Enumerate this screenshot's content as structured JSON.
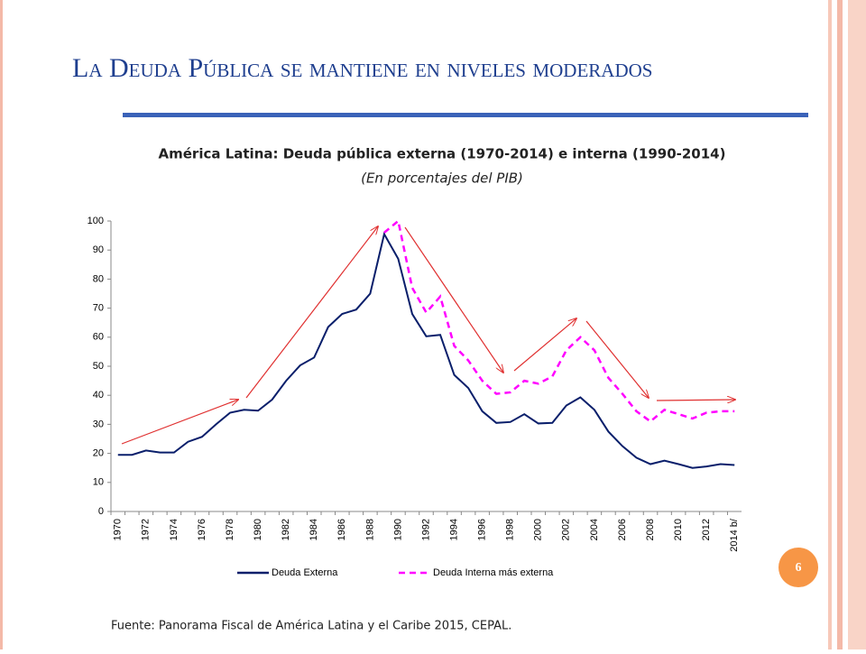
{
  "slide_title": "La Deuda Pública se mantiene en niveles moderados",
  "source": "Fuente: Panorama Fiscal  de América Latina y el Caribe 2015, CEPAL.",
  "page_number": 6,
  "chart_data": {
    "type": "line",
    "title": "América Latina: Deuda pública externa (1970-2014) e interna (1990-2014)",
    "subtitle": "(En porcentajes del PIB)",
    "categories": [
      "1970",
      null,
      "1972",
      null,
      "1974",
      null,
      "1976",
      null,
      "1978",
      null,
      "1980",
      null,
      "1982",
      null,
      "1984",
      null,
      "1986",
      null,
      "1988",
      null,
      "1990",
      null,
      "1992",
      null,
      "1994",
      null,
      "1996",
      null,
      "1998",
      null,
      "2000",
      null,
      "2002",
      null,
      "2004",
      null,
      "2006",
      null,
      "2008",
      null,
      "2010",
      null,
      "2012",
      null,
      "2014 b/"
    ],
    "series": [
      {
        "name": "Deuda Externa",
        "color": "#0a1f6b",
        "dash": false,
        "values": [
          19.5,
          19.5,
          21,
          20.3,
          20.3,
          24,
          25.7,
          30,
          34,
          35,
          34.7,
          38.5,
          45,
          50.3,
          53,
          63.5,
          68,
          69.5,
          75,
          95.5,
          87,
          68,
          60.3,
          60.8,
          47,
          42.5,
          34.5,
          30.5,
          30.8,
          33.5,
          30.3,
          30.5,
          36.5,
          39.3,
          35,
          27.5,
          22.5,
          18.5,
          16.3,
          17.5,
          16.3,
          15,
          15.5,
          16.3,
          16
        ]
      },
      {
        "name": "Deuda Interna más externa",
        "color": "#ff00ff",
        "dash": true,
        "values": [
          null,
          null,
          null,
          null,
          null,
          null,
          null,
          null,
          null,
          null,
          null,
          null,
          null,
          null,
          null,
          null,
          null,
          null,
          null,
          96,
          100,
          77,
          68.5,
          74,
          57,
          52,
          45,
          40.5,
          41,
          45,
          44,
          46.5,
          55.5,
          60,
          55.5,
          46,
          40.5,
          34.5,
          31,
          35,
          33.5,
          32,
          34,
          34.5,
          34.5
        ]
      }
    ],
    "ylim": [
      0,
      100
    ],
    "yticks": [
      0,
      10,
      20,
      30,
      40,
      50,
      60,
      70,
      80,
      90,
      100
    ],
    "grid": false
  }
}
